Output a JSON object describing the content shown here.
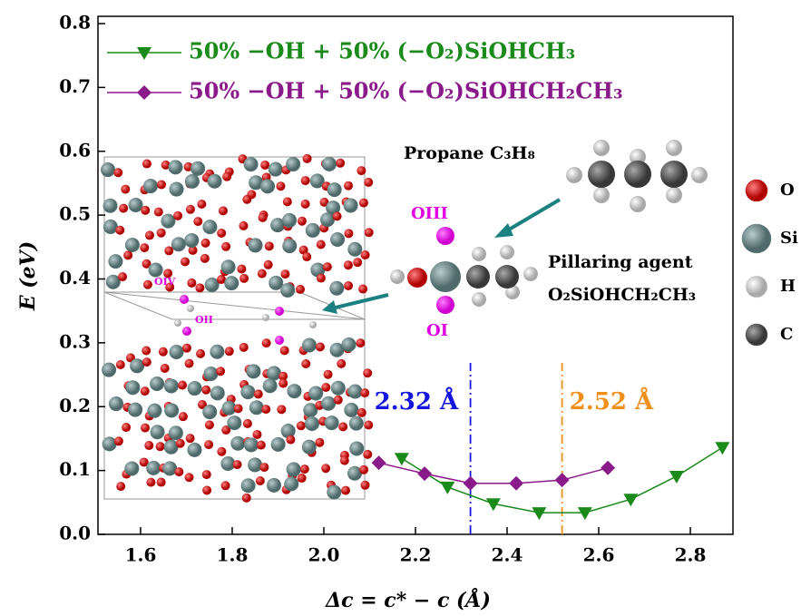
{
  "chart_data": {
    "type": "line",
    "xlabel": "Δc = c* − c (Å)",
    "ylabel": "E (eV)",
    "xlim": [
      1.507,
      2.893
    ],
    "ylim": [
      0,
      0.8
    ],
    "xticks": [
      1.6,
      1.8,
      {
        "value": 2,
        "label": "2.0"
      },
      2.2,
      2.4,
      2.6,
      2.8
    ],
    "yticks": [
      {
        "value": 0,
        "label": "0.0"
      },
      0.1,
      0.2,
      0.3,
      0.4,
      0.5,
      0.6,
      0.7,
      0.8
    ],
    "series": [
      {
        "name": "50% −OH + 50% (−O₂)SiOHCH₃",
        "color": "#1a8a1a",
        "marker": "triangle-down",
        "x": [
          2.17,
          2.27,
          2.37,
          2.47,
          2.57,
          2.67,
          2.77,
          2.87
        ],
        "values": [
          0.119,
          0.074,
          0.048,
          0.034,
          0.034,
          0.055,
          0.091,
          0.136
        ]
      },
      {
        "name": "50% −OH + 50% (−O₂)SiOHCH₂CH₃",
        "color": "#8a1a8a",
        "marker": "diamond",
        "x": [
          2.12,
          2.22,
          2.32,
          2.42,
          2.52,
          2.62
        ],
        "values": [
          0.112,
          0.095,
          0.08,
          0.08,
          0.085,
          0.104
        ]
      }
    ],
    "vlines": [
      {
        "x": 2.32,
        "label": "2.32 Å",
        "color": "#1515e0"
      },
      {
        "x": 2.52,
        "label": "2.52 Å",
        "color": "#f0901a"
      }
    ],
    "annotations": {
      "propane": "Propane C₃H₈",
      "pillaring": "Pillaring agent",
      "formula": "O₂SiOHCH₂CH₃",
      "o3": "OIII",
      "o1": "OI",
      "o4": "OIV",
      "o2": "OII"
    },
    "atom_legend": [
      {
        "label": "O",
        "color": "#d00000"
      },
      {
        "label": "Si",
        "color": "#6f8a8a"
      },
      {
        "label": "H",
        "color": "#e8e8e8"
      },
      {
        "label": "C",
        "color": "#606060"
      }
    ]
  }
}
